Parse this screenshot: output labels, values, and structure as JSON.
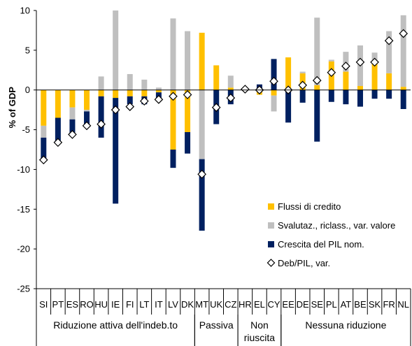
{
  "chart_data": {
    "type": "bar",
    "stacked": true,
    "ylabel": "% of GDP",
    "ylim": [
      -25,
      10
    ],
    "yticks": [
      10,
      5,
      0,
      -5,
      -10,
      -15,
      -20,
      -25
    ],
    "grid": false,
    "legend_position": "lower-right",
    "categories": [
      "SI",
      "PT",
      "ES",
      "RO",
      "HU",
      "IE",
      "FI",
      "LT",
      "IT",
      "LV",
      "DK",
      "MT",
      "UK",
      "CZ",
      "HR",
      "EL",
      "CY",
      "EE",
      "DE",
      "SE",
      "PL",
      "AT",
      "BE",
      "SK",
      "FR",
      "NL"
    ],
    "groups": [
      {
        "label": "Riduzione attiva dell'indeb.to",
        "start": 0,
        "end": 10
      },
      {
        "label": "Passiva",
        "start": 11,
        "end": 13
      },
      {
        "label": "Non riuscita",
        "label_lines": [
          "Non",
          "riuscita"
        ],
        "start": 14,
        "end": 16
      },
      {
        "label": "Nessuna riduzione",
        "start": 17,
        "end": 25
      }
    ],
    "series": [
      {
        "name": "Flussi di credito",
        "kind": "bar",
        "color": "#FFC000",
        "values": [
          -4.5,
          -3.5,
          -2.2,
          -2.5,
          -0.8,
          -1.0,
          -0.8,
          -0.8,
          -0.3,
          -7.5,
          -5.3,
          7.2,
          3.1,
          0.3,
          0.1,
          -0.6,
          -0.7,
          4.1,
          2.1,
          0.6,
          3.6,
          2.3,
          0.5,
          3.3,
          2.1,
          0.4
        ]
      },
      {
        "name": "Svalutaz., riclass., var. valore",
        "kind": "bar",
        "color": "#BFBFBF",
        "values": [
          -1.5,
          0.0,
          -1.5,
          -0.2,
          1.7,
          10.0,
          2.0,
          1.3,
          0.3,
          9.0,
          7.4,
          -8.7,
          0.0,
          1.5,
          0.0,
          0.0,
          -2.0,
          0.0,
          0.2,
          8.5,
          0.2,
          2.5,
          5.1,
          1.4,
          5.3,
          9.0
        ]
      },
      {
        "name": "Crescita del PIL nom.",
        "kind": "bar",
        "color": "#002060",
        "values": [
          -2.8,
          -3.2,
          -1.8,
          -1.9,
          -5.2,
          -13.3,
          -1.0,
          -1.0,
          -1.0,
          -2.3,
          -2.7,
          -9.0,
          -4.3,
          -1.8,
          0.0,
          0.7,
          3.9,
          -4.1,
          -1.6,
          -6.5,
          -1.5,
          -1.8,
          -2.1,
          -1.1,
          -1.1,
          -2.4
        ]
      },
      {
        "name": "Deb/PIL, var.",
        "kind": "marker",
        "color": "#ffffff",
        "values": [
          -8.8,
          -6.6,
          -5.6,
          -4.5,
          -4.3,
          -2.5,
          -2.1,
          -1.4,
          -1.2,
          -0.8,
          -0.6,
          -10.6,
          -2.2,
          -1.0,
          0.1,
          0.0,
          1.1,
          0.0,
          0.6,
          1.2,
          2.2,
          3.0,
          3.5,
          3.5,
          6.2,
          7.1
        ]
      }
    ]
  }
}
